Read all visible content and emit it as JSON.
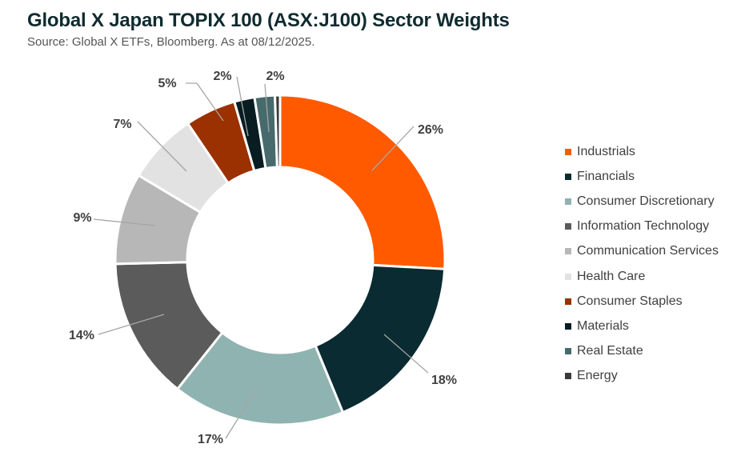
{
  "chart_data": {
    "type": "pie",
    "style": "donut",
    "title": "Global X Japan TOPIX 100 (ASX:J100) Sector Weights",
    "subtitle": "Source: Global X ETFs, Bloomberg. As at 08/12/2025.",
    "legend_position": "right",
    "slices": [
      {
        "name": "Industrials",
        "value": 26,
        "label": "26%",
        "color": "#ff5a00"
      },
      {
        "name": "Financials",
        "value": 18,
        "label": "18%",
        "color": "#0a2b31"
      },
      {
        "name": "Consumer Discretionary",
        "value": 17,
        "label": "17%",
        "color": "#8fb3b1"
      },
      {
        "name": "Information Technology",
        "value": 14,
        "label": "14%",
        "color": "#5b5b5b"
      },
      {
        "name": "Communication Services",
        "value": 9,
        "label": "9%",
        "color": "#b7b7b7"
      },
      {
        "name": "Health Care",
        "value": 7,
        "label": "7%",
        "color": "#e2e2e2"
      },
      {
        "name": "Consumer Staples",
        "value": 5,
        "label": "5%",
        "color": "#9b3000"
      },
      {
        "name": "Materials",
        "value": 2,
        "label": "2%",
        "color": "#071d22"
      },
      {
        "name": "Real Estate",
        "value": 2,
        "label": "2%",
        "color": "#476a6c"
      },
      {
        "name": "Energy",
        "value": 0.5,
        "label": "",
        "color": "#3a3a3a"
      }
    ]
  }
}
